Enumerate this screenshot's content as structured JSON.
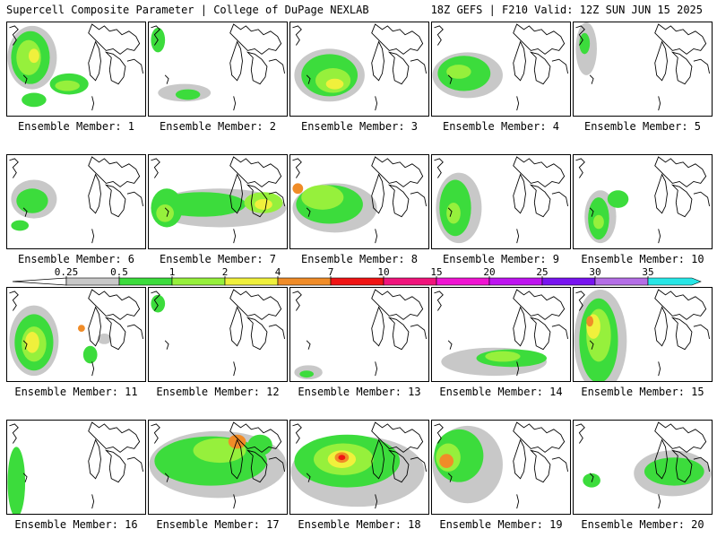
{
  "header": {
    "title_left": "Supercell Composite Parameter | College of DuPage NEXLAB",
    "title_right": "18Z GEFS | F210 Valid: 12Z SUN JUN 15 2025"
  },
  "caption_prefix": "Ensemble Member:",
  "members": [
    1,
    2,
    3,
    4,
    5,
    6,
    7,
    8,
    9,
    10,
    11,
    12,
    13,
    14,
    15,
    16,
    17,
    18,
    19,
    20
  ],
  "members_text": [
    "Ensemble Member: 1",
    "Ensemble Member: 2",
    "Ensemble Member: 3",
    "Ensemble Member: 4",
    "Ensemble Member: 5",
    "Ensemble Member: 6",
    "Ensemble Member: 7",
    "Ensemble Member: 8",
    "Ensemble Member: 9",
    "Ensemble Member: 10",
    "Ensemble Member: 11",
    "Ensemble Member: 12",
    "Ensemble Member: 13",
    "Ensemble Member: 14",
    "Ensemble Member: 15",
    "Ensemble Member: 16",
    "Ensemble Member: 17",
    "Ensemble Member: 18",
    "Ensemble Member: 19",
    "Ensemble Member: 20"
  ],
  "colorbar": {
    "levels": [
      "0.25",
      "0.5",
      "1",
      "2",
      "4",
      "7",
      "10",
      "15",
      "20",
      "25",
      "30",
      "35"
    ],
    "colors": [
      "#c8c8c8",
      "#3cdc3c",
      "#96f03c",
      "#f0f03c",
      "#f08c28",
      "#f01414",
      "#f0147c",
      "#f014d2",
      "#be14f0",
      "#7814f0",
      "#b46ee6",
      "#28e6e6"
    ]
  }
}
